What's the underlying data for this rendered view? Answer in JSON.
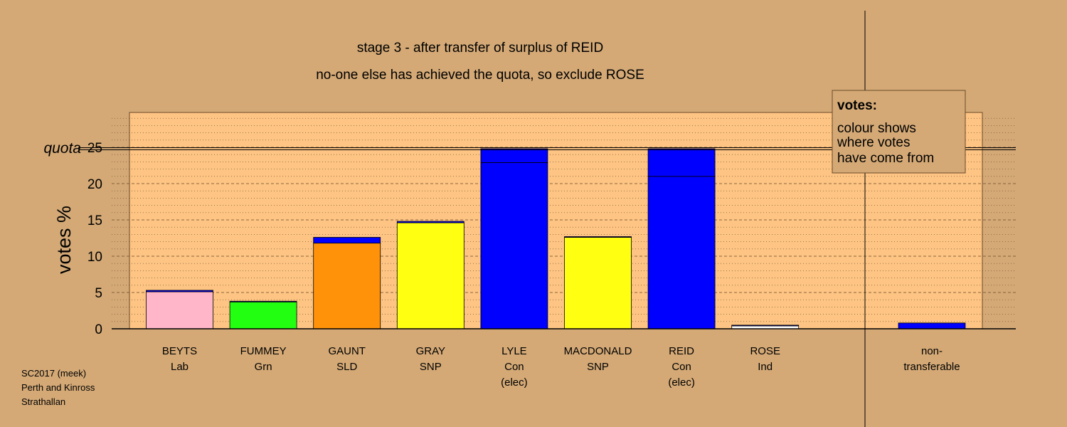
{
  "chart_data": {
    "type": "bar",
    "title": "stage 3 - after transfer of surplus of REID",
    "subtitle": "no-one else has achieved the quota, so exclude ROSE",
    "ylabel": "votes %",
    "ylim": [
      0,
      25
    ],
    "yticks": [
      0,
      5,
      10,
      15,
      20,
      25
    ],
    "quota": 24.8,
    "quota_label": "quota",
    "legend": {
      "title": "votes:",
      "lines": [
        "colour shows",
        "where votes",
        "have come from"
      ]
    },
    "candidates": [
      {
        "name": "BEYTS",
        "party": "Lab",
        "note": "",
        "segments": [
          {
            "value": 5.1,
            "color": "#ffb6c8"
          },
          {
            "value": 0.2,
            "color": "#0000ff"
          }
        ]
      },
      {
        "name": "FUMMEY",
        "party": "Grn",
        "note": "",
        "segments": [
          {
            "value": 3.7,
            "color": "#22ff11"
          },
          {
            "value": 0.1,
            "color": "#0000ff"
          }
        ]
      },
      {
        "name": "GAUNT",
        "party": "SLD",
        "note": "",
        "segments": [
          {
            "value": 11.8,
            "color": "#ff9208"
          },
          {
            "value": 0.8,
            "color": "#0000ff"
          }
        ]
      },
      {
        "name": "GRAY",
        "party": "SNP",
        "note": "",
        "segments": [
          {
            "value": 14.6,
            "color": "#ffff11"
          },
          {
            "value": 0.2,
            "color": "#0000ff"
          }
        ]
      },
      {
        "name": "LYLE",
        "party": "Con",
        "note": "(elec)",
        "segments": [
          {
            "value": 22.9,
            "color": "#0000ff"
          },
          {
            "value": 1.9,
            "color": "#0000ff"
          }
        ]
      },
      {
        "name": "MACDONALD",
        "party": "SNP",
        "note": "",
        "segments": [
          {
            "value": 12.6,
            "color": "#ffff11"
          },
          {
            "value": 0.1,
            "color": "#0000ff"
          }
        ]
      },
      {
        "name": "REID",
        "party": "Con",
        "note": "(elec)",
        "segments": [
          {
            "value": 21.0,
            "color": "#0000ff"
          },
          {
            "value": 3.8,
            "color": "#0000ff"
          }
        ]
      },
      {
        "name": "ROSE",
        "party": "Ind",
        "note": "",
        "segments": [
          {
            "value": 0.4,
            "color": "#ffffff"
          },
          {
            "value": 0.1,
            "color": "#0000ff"
          }
        ]
      }
    ],
    "nontransferable": {
      "label1": "non-",
      "label2": "transferable",
      "value": 0.8,
      "color": "#0000ff"
    }
  },
  "footer": [
    "SC2017 (meek)",
    "Perth and Kinross",
    "Strathallan"
  ],
  "colors": {
    "background": "#d4a976",
    "plot_area": "#fdc483",
    "legend_box": "#d4a976"
  }
}
